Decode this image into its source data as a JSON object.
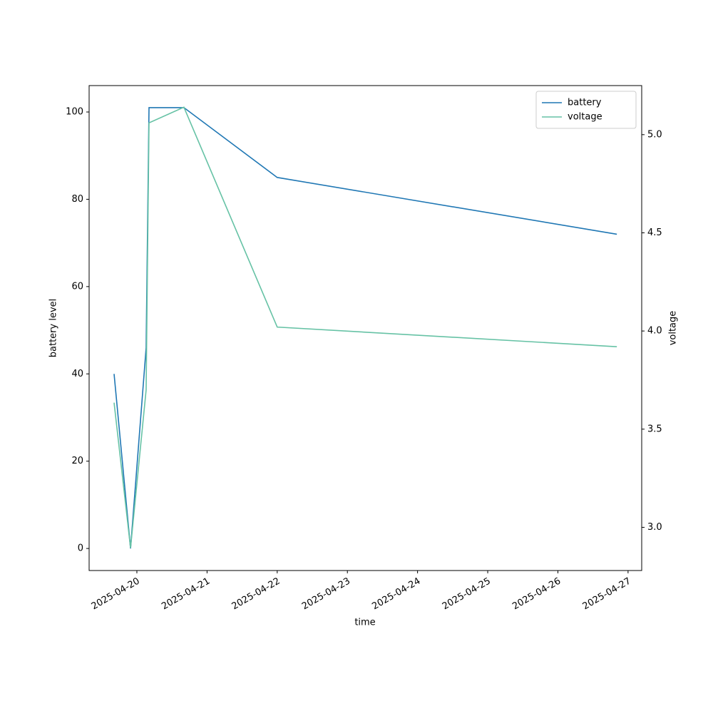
{
  "chart_data": {
    "type": "line",
    "x_label": "time",
    "y_label": "battery level",
    "y2_label": "voltage",
    "x": [
      "2025-04-19T16:12",
      "2025-04-19T21:50",
      "2025-04-20T03:10",
      "2025-04-20T04:09",
      "2025-04-20T16:05",
      "2025-04-22T00:00",
      "2025-04-26T20:10"
    ],
    "series": [
      {
        "name": "battery",
        "color": "#1f77b4",
        "values": [
          40,
          0,
          46,
          101,
          101,
          85,
          72
        ]
      },
      {
        "name": "voltage",
        "color": "#66c2a5",
        "axis": "y2",
        "values": [
          3.635,
          2.895,
          3.7,
          5.06,
          5.14,
          4.02,
          3.92
        ]
      }
    ],
    "xlim": [
      "2025-04-19T07:40",
      "2025-04-27T04:40"
    ],
    "xticks": [
      "2025-04-20",
      "2025-04-21",
      "2025-04-22",
      "2025-04-23",
      "2025-04-24",
      "2025-04-25",
      "2025-04-26",
      "2025-04-27"
    ],
    "ylim": [
      -5.05,
      106.05
    ],
    "yticks": [
      0,
      20,
      40,
      60,
      80,
      100
    ],
    "y2lim": [
      2.78,
      5.25
    ],
    "y2ticks": [
      3.0,
      3.5,
      4.0,
      4.5,
      5.0
    ],
    "legend": "upper right"
  }
}
